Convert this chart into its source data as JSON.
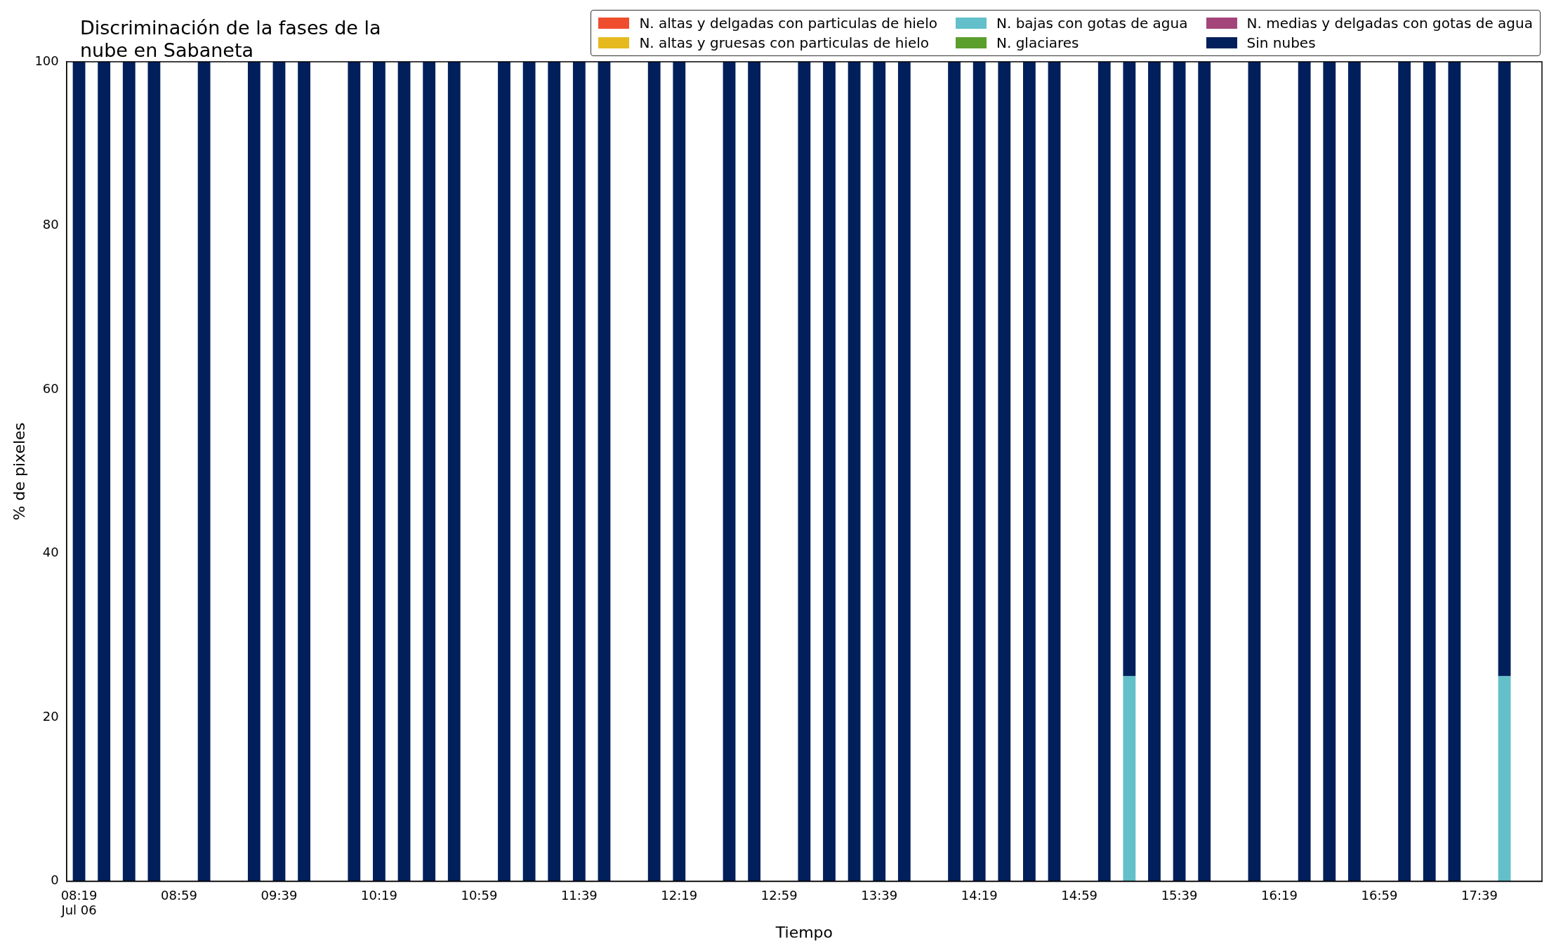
{
  "chart_data": {
    "type": "bar",
    "title": "Discriminación de la fases de la\nnube en Sabaneta",
    "xlabel": "Tiempo",
    "ylabel": "% de pixeles",
    "stacked": true,
    "grid": false,
    "legend": "top right",
    "ylim": [
      0,
      100
    ],
    "yticks": [
      0,
      20,
      40,
      60,
      80,
      100
    ],
    "categories": [
      "08:19\nJul 06",
      null,
      null,
      null,
      "08:59",
      null,
      null,
      null,
      "09:39",
      null,
      null,
      null,
      "10:19",
      null,
      null,
      null,
      "10:59",
      null,
      null,
      null,
      "11:39",
      null,
      null,
      null,
      "12:19",
      null,
      null,
      null,
      "12:59",
      null,
      null,
      null,
      "13:39",
      null,
      null,
      null,
      "14:19",
      null,
      null,
      null,
      "14:59",
      null,
      null,
      null,
      "15:39",
      null,
      null,
      null,
      "16:19",
      null,
      null,
      null,
      "16:59",
      null,
      null,
      null,
      "17:39",
      null,
      null
    ],
    "series": [
      {
        "name": "N. altas y delgadas con particulas de hielo",
        "color": "#ee4d2e",
        "values": [
          0,
          0,
          0,
          0,
          null,
          0,
          null,
          0,
          0,
          0,
          null,
          0,
          0,
          0,
          0,
          0,
          null,
          0,
          0,
          0,
          0,
          0,
          null,
          0,
          0,
          null,
          0,
          0,
          null,
          0,
          0,
          0,
          0,
          0,
          null,
          0,
          0,
          0,
          0,
          0,
          null,
          0,
          0,
          0,
          0,
          0,
          null,
          0,
          null,
          0,
          0,
          0,
          null,
          0,
          0,
          0,
          null,
          0,
          null
        ]
      },
      {
        "name": "N. altas y gruesas con particulas de hielo",
        "color": "#e6b91e",
        "values": [
          0,
          0,
          0,
          0,
          null,
          0,
          null,
          0,
          0,
          0,
          null,
          0,
          0,
          0,
          0,
          0,
          null,
          0,
          0,
          0,
          0,
          0,
          null,
          0,
          0,
          null,
          0,
          0,
          null,
          0,
          0,
          0,
          0,
          0,
          null,
          0,
          0,
          0,
          0,
          0,
          null,
          0,
          0,
          0,
          0,
          0,
          null,
          0,
          null,
          0,
          0,
          0,
          null,
          0,
          0,
          0,
          null,
          0,
          null
        ]
      },
      {
        "name": "N. bajas con gotas de agua",
        "color": "#63bfc9",
        "values": [
          0,
          0,
          0,
          0,
          null,
          0,
          null,
          0,
          0,
          0,
          null,
          0,
          0,
          0,
          0,
          0,
          null,
          0,
          0,
          0,
          0,
          0,
          null,
          0,
          0,
          null,
          0,
          0,
          null,
          0,
          0,
          0,
          0,
          0,
          null,
          0,
          0,
          0,
          0,
          0,
          null,
          0,
          25,
          0,
          0,
          0,
          null,
          0,
          null,
          0,
          0,
          0,
          null,
          0,
          0,
          0,
          null,
          25,
          null
        ]
      },
      {
        "name": "N. glaciares",
        "color": "#5a9e2c",
        "values": [
          0,
          0,
          0,
          0,
          null,
          0,
          null,
          0,
          0,
          0,
          null,
          0,
          0,
          0,
          0,
          0,
          null,
          0,
          0,
          0,
          0,
          0,
          null,
          0,
          0,
          null,
          0,
          0,
          null,
          0,
          0,
          0,
          0,
          0,
          null,
          0,
          0,
          0,
          0,
          0,
          null,
          0,
          0,
          0,
          0,
          0,
          null,
          0,
          null,
          0,
          0,
          0,
          null,
          0,
          0,
          0,
          null,
          0,
          null
        ]
      },
      {
        "name": "N. medias y delgadas con gotas de agua",
        "color": "#a3457a",
        "values": [
          0,
          0,
          0,
          0,
          null,
          0,
          null,
          0,
          0,
          0,
          null,
          0,
          0,
          0,
          0,
          0,
          null,
          0,
          0,
          0,
          0,
          0,
          null,
          0,
          0,
          null,
          0,
          0,
          null,
          0,
          0,
          0,
          0,
          0,
          null,
          0,
          0,
          0,
          0,
          0,
          null,
          0,
          0,
          0,
          0,
          0,
          null,
          0,
          null,
          0,
          0,
          0,
          null,
          0,
          0,
          0,
          null,
          0,
          null
        ]
      },
      {
        "name": "Sin nubes",
        "color": "#001f5b",
        "values": [
          100,
          100,
          100,
          100,
          null,
          100,
          null,
          100,
          100,
          100,
          null,
          100,
          100,
          100,
          100,
          100,
          null,
          100,
          100,
          100,
          100,
          100,
          null,
          100,
          100,
          null,
          100,
          100,
          null,
          100,
          100,
          100,
          100,
          100,
          null,
          100,
          100,
          100,
          100,
          100,
          null,
          100,
          75,
          100,
          100,
          100,
          null,
          100,
          null,
          100,
          100,
          100,
          null,
          100,
          100,
          100,
          null,
          75,
          null
        ]
      }
    ]
  }
}
